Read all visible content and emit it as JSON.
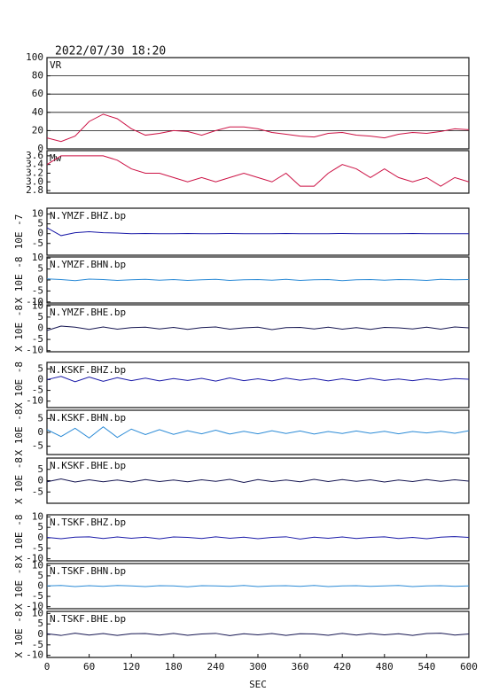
{
  "chart_data": [
    {
      "type": "line",
      "title": "2022/07/30 18:20",
      "xlim": [
        0,
        600
      ],
      "ylim": [
        0,
        100
      ],
      "yticks": [
        0,
        20,
        40,
        60,
        80,
        100
      ],
      "grid": true,
      "x": [
        0,
        20,
        40,
        60,
        80,
        100,
        120,
        140,
        160,
        180,
        200,
        220,
        240,
        260,
        280,
        300,
        320,
        340,
        360,
        380,
        400,
        420,
        440,
        460,
        480,
        500,
        520,
        540,
        560,
        580,
        600
      ],
      "series": [
        {
          "name": "VR",
          "color": "#cc1144",
          "values": [
            12,
            8,
            14,
            30,
            38,
            33,
            22,
            15,
            17,
            20,
            19,
            15,
            20,
            24,
            24,
            22,
            18,
            16,
            14,
            13,
            17,
            18,
            15,
            14,
            12,
            16,
            18,
            17,
            19,
            22,
            21
          ]
        }
      ]
    },
    {
      "type": "line",
      "xlim": [
        0,
        600
      ],
      "ylim": [
        2.74,
        3.72
      ],
      "yticks": [
        {
          "value": 2.8,
          "label": "2.8"
        },
        {
          "value": 3.0,
          "label": "3.0"
        },
        {
          "value": 3.2,
          "label": "3.2"
        },
        {
          "value": 3.4,
          "label": "3.4"
        },
        {
          "value": 3.6,
          "label": "3.6"
        }
      ],
      "grid": false,
      "x": [
        0,
        20,
        40,
        60,
        80,
        100,
        120,
        140,
        160,
        180,
        200,
        220,
        240,
        260,
        280,
        300,
        320,
        340,
        360,
        380,
        400,
        420,
        440,
        460,
        480,
        500,
        520,
        540,
        560,
        580,
        600
      ],
      "series": [
        {
          "name": "Mw",
          "color": "#cc1144",
          "values": [
            3.4,
            3.6,
            3.6,
            3.6,
            3.6,
            3.5,
            3.3,
            3.2,
            3.2,
            3.1,
            3.0,
            3.1,
            3.0,
            3.1,
            3.2,
            3.1,
            3.0,
            3.2,
            2.9,
            2.9,
            3.2,
            3.4,
            3.3,
            3.1,
            3.3,
            3.1,
            3.0,
            3.1,
            2.9,
            3.1,
            3.0
          ]
        }
      ]
    },
    {
      "type": "line",
      "ylabel": "10E -7",
      "xlim": [
        0,
        600
      ],
      "ylim": [
        -11,
        13
      ],
      "yticks": [
        -5,
        0,
        5,
        10
      ],
      "grid": false,
      "x": [
        0,
        20,
        40,
        60,
        80,
        100,
        120,
        140,
        160,
        180,
        200,
        220,
        240,
        260,
        280,
        300,
        320,
        340,
        360,
        380,
        400,
        420,
        440,
        460,
        480,
        500,
        520,
        540,
        560,
        580,
        600
      ],
      "series": [
        {
          "name": "N.YMZF.BHZ.bp",
          "color": "#1a1aa8",
          "values": [
            3,
            -1,
            0.5,
            1,
            0.5,
            0.3,
            0,
            0.1,
            0,
            0,
            0.1,
            0,
            0,
            0.1,
            0,
            0,
            0,
            0.1,
            0,
            0,
            0,
            0.1,
            0,
            0,
            0,
            0,
            0.1,
            0,
            0,
            0,
            0
          ]
        }
      ]
    },
    {
      "type": "line",
      "ylabel": "X 10E -8",
      "xlim": [
        0,
        600
      ],
      "ylim": [
        -10.5,
        10.5
      ],
      "yticks": [
        -10,
        -5,
        0,
        5,
        10
      ],
      "grid": false,
      "x": [
        0,
        20,
        40,
        60,
        80,
        100,
        120,
        140,
        160,
        180,
        200,
        220,
        240,
        260,
        280,
        300,
        320,
        340,
        360,
        380,
        400,
        420,
        440,
        460,
        480,
        500,
        520,
        540,
        560,
        580,
        600
      ],
      "series": [
        {
          "name": "N.YMZF.BHN.bp",
          "color": "#2a8ad6",
          "values": [
            0.5,
            0.2,
            -0.3,
            0.4,
            0.2,
            -0.2,
            0.1,
            0.3,
            -0.1,
            0.2,
            -0.2,
            0.1,
            0.3,
            -0.2,
            0.1,
            0.2,
            -0.1,
            0.3,
            -0.2,
            0.1,
            0.2,
            -0.3,
            0.1,
            0.2,
            -0.1,
            0.2,
            0.1,
            -0.2,
            0.3,
            0.1,
            0.2
          ]
        }
      ]
    },
    {
      "type": "line",
      "ylabel": "X 10E -8",
      "xlim": [
        0,
        600
      ],
      "ylim": [
        -10.5,
        10.5
      ],
      "yticks": [
        -10,
        -5,
        0,
        5,
        10
      ],
      "grid": false,
      "x": [
        0,
        20,
        40,
        60,
        80,
        100,
        120,
        140,
        160,
        180,
        200,
        220,
        240,
        260,
        280,
        300,
        320,
        340,
        360,
        380,
        400,
        420,
        440,
        460,
        480,
        500,
        520,
        540,
        560,
        580,
        600
      ],
      "series": [
        {
          "name": "N.YMZF.BHE.bp",
          "color": "#141450",
          "values": [
            -1,
            1,
            0.5,
            -0.5,
            0.6,
            -0.4,
            0.3,
            0.5,
            -0.3,
            0.4,
            -0.5,
            0.3,
            0.6,
            -0.4,
            0.2,
            0.5,
            -0.6,
            0.3,
            0.4,
            -0.3,
            0.5,
            -0.4,
            0.3,
            -0.5,
            0.4,
            0.2,
            -0.3,
            0.5,
            -0.4,
            0.6,
            0.2
          ]
        }
      ]
    },
    {
      "type": "line",
      "ylabel": "X 10E -8",
      "xlim": [
        0,
        600
      ],
      "ylim": [
        -13,
        8
      ],
      "yticks": [
        -10,
        -5,
        0,
        5
      ],
      "grid": false,
      "x": [
        0,
        20,
        40,
        60,
        80,
        100,
        120,
        140,
        160,
        180,
        200,
        220,
        240,
        260,
        280,
        300,
        320,
        340,
        360,
        380,
        400,
        420,
        440,
        460,
        480,
        500,
        520,
        540,
        560,
        580,
        600
      ],
      "series": [
        {
          "name": "N.KSKF.BHZ.bp",
          "color": "#1a1aa8",
          "values": [
            0,
            1.5,
            -1,
            1.2,
            -0.8,
            0.9,
            -0.5,
            0.7,
            -0.6,
            0.5,
            -0.4,
            0.6,
            -0.7,
            0.8,
            -0.5,
            0.4,
            -0.6,
            0.7,
            -0.3,
            0.5,
            -0.6,
            0.4,
            -0.5,
            0.6,
            -0.4,
            0.3,
            -0.5,
            0.4,
            -0.3,
            0.5,
            0.2
          ]
        }
      ]
    },
    {
      "type": "line",
      "ylabel": "X 10E -8",
      "xlim": [
        0,
        600
      ],
      "ylim": [
        -8,
        8
      ],
      "yticks": [
        -5,
        0,
        5
      ],
      "grid": false,
      "x": [
        0,
        20,
        40,
        60,
        80,
        100,
        120,
        140,
        160,
        180,
        200,
        220,
        240,
        260,
        280,
        300,
        320,
        340,
        360,
        380,
        400,
        420,
        440,
        460,
        480,
        500,
        520,
        540,
        560,
        580,
        600
      ],
      "series": [
        {
          "name": "N.KSKF.BHN.bp",
          "color": "#2a8ad6",
          "values": [
            1,
            -1.5,
            1.5,
            -2,
            2,
            -1.8,
            1.2,
            -0.8,
            1,
            -0.7,
            0.6,
            -0.5,
            0.8,
            -0.6,
            0.4,
            -0.5,
            0.6,
            -0.4,
            0.5,
            -0.6,
            0.3,
            -0.4,
            0.5,
            -0.3,
            0.4,
            -0.5,
            0.3,
            -0.2,
            0.4,
            -0.3,
            0.6
          ]
        }
      ]
    },
    {
      "type": "line",
      "ylabel": "X 10E -8",
      "xlim": [
        0,
        600
      ],
      "ylim": [
        -10,
        10
      ],
      "yticks": [
        -5,
        0,
        5
      ],
      "grid": false,
      "x": [
        0,
        20,
        40,
        60,
        80,
        100,
        120,
        140,
        160,
        180,
        200,
        220,
        240,
        260,
        280,
        300,
        320,
        340,
        360,
        380,
        400,
        420,
        440,
        460,
        480,
        500,
        520,
        540,
        560,
        580,
        600
      ],
      "series": [
        {
          "name": "N.KSKF.BHE.bp",
          "color": "#141450",
          "values": [
            -0.5,
            0.8,
            -0.6,
            0.4,
            -0.5,
            0.3,
            -0.6,
            0.5,
            -0.4,
            0.3,
            -0.5,
            0.4,
            -0.3,
            0.6,
            -0.8,
            0.5,
            -0.4,
            0.3,
            -0.5,
            0.6,
            -0.4,
            0.5,
            -0.3,
            0.4,
            -0.6,
            0.3,
            -0.4,
            0.5,
            -0.3,
            0.4,
            -0.2
          ]
        }
      ]
    },
    {
      "type": "line",
      "ylabel": "X 10E -8",
      "xlim": [
        0,
        600
      ],
      "ylim": [
        -11,
        11
      ],
      "yticks": [
        -10,
        -5,
        0,
        5,
        10
      ],
      "grid": false,
      "x": [
        0,
        20,
        40,
        60,
        80,
        100,
        120,
        140,
        160,
        180,
        200,
        220,
        240,
        260,
        280,
        300,
        320,
        340,
        360,
        380,
        400,
        420,
        440,
        460,
        480,
        500,
        520,
        540,
        560,
        580,
        600
      ],
      "series": [
        {
          "name": "N.TSKF.BHZ.bp",
          "color": "#1a1aa8",
          "values": [
            0.2,
            -0.4,
            0.3,
            0.5,
            -0.3,
            0.4,
            -0.2,
            0.3,
            -0.5,
            0.4,
            0.2,
            -0.3,
            0.5,
            -0.2,
            0.3,
            -0.4,
            0.2,
            0.5,
            -0.6,
            0.3,
            -0.2,
            0.4,
            -0.3,
            0.2,
            0.5,
            -0.3,
            0.2,
            -0.4,
            0.3,
            0.6,
            0.2
          ]
        }
      ]
    },
    {
      "type": "line",
      "ylabel": "X 10E -8",
      "xlim": [
        0,
        600
      ],
      "ylim": [
        -11,
        11
      ],
      "yticks": [
        -10,
        -5,
        0,
        5,
        10
      ],
      "grid": false,
      "x": [
        0,
        20,
        40,
        60,
        80,
        100,
        120,
        140,
        160,
        180,
        200,
        220,
        240,
        260,
        280,
        300,
        320,
        340,
        360,
        380,
        400,
        420,
        440,
        460,
        480,
        500,
        520,
        540,
        560,
        580,
        600
      ],
      "series": [
        {
          "name": "N.TSKF.BHN.bp",
          "color": "#2a8ad6",
          "values": [
            0.1,
            0.3,
            -0.2,
            0.2,
            -0.1,
            0.3,
            0.1,
            -0.2,
            0.2,
            0.1,
            -0.3,
            0.2,
            0.1,
            -0.1,
            0.3,
            -0.2,
            0.1,
            0.2,
            -0.1,
            0.3,
            -0.2,
            0.1,
            0.2,
            -0.1,
            0.1,
            0.3,
            -0.2,
            0.1,
            0.2,
            -0.1,
            0.1
          ]
        }
      ]
    },
    {
      "type": "line",
      "ylabel": "X 10E -8",
      "xlabel": "SEC",
      "xlim": [
        0,
        600
      ],
      "xticks": [
        0,
        60,
        120,
        180,
        240,
        300,
        360,
        420,
        480,
        540,
        600
      ],
      "ylim": [
        -11,
        11
      ],
      "yticks": [
        -10,
        -5,
        0,
        5,
        10
      ],
      "grid": false,
      "x": [
        0,
        20,
        40,
        60,
        80,
        100,
        120,
        140,
        160,
        180,
        200,
        220,
        240,
        260,
        280,
        300,
        320,
        340,
        360,
        380,
        400,
        420,
        440,
        460,
        480,
        500,
        520,
        540,
        560,
        580,
        600
      ],
      "series": [
        {
          "name": "N.TSKF.BHE.bp",
          "color": "#141450",
          "values": [
            0.3,
            -0.5,
            0.6,
            -0.3,
            0.4,
            -0.5,
            0.3,
            0.4,
            -0.3,
            0.5,
            -0.4,
            0.2,
            0.5,
            -0.6,
            0.3,
            -0.2,
            0.4,
            -0.5,
            0.3,
            0.2,
            -0.4,
            0.5,
            -0.3,
            0.4,
            -0.2,
            0.3,
            -0.5,
            0.4,
            0.6,
            -0.3,
            0.2
          ]
        }
      ]
    }
  ]
}
